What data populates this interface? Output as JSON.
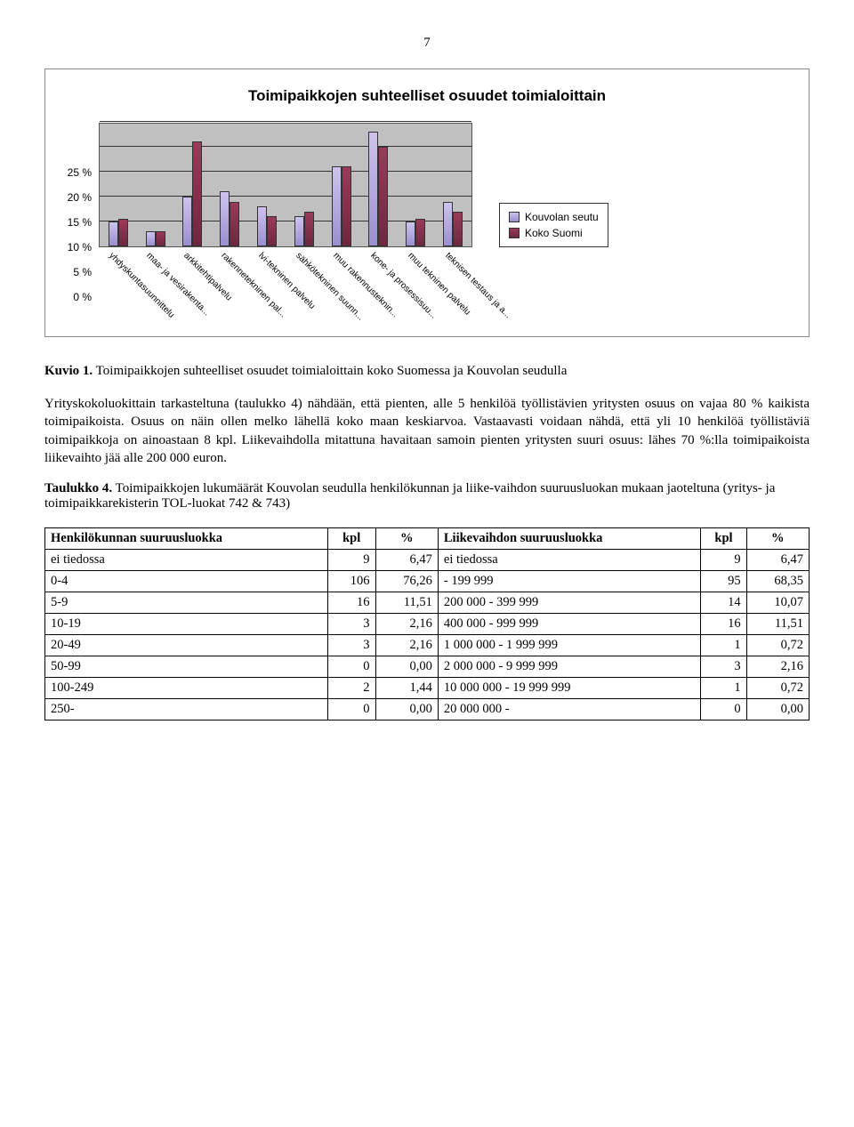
{
  "page_number": "7",
  "chart": {
    "title": "Toimipaikkojen suhteelliset osuudet toimialoittain",
    "type": "bar",
    "y_ticks": [
      "0 %",
      "5 %",
      "10 %",
      "15 %",
      "20 %",
      "25 %"
    ],
    "y_max": 25,
    "categories": [
      "yhdyskuntasuunnittelu",
      "maa- ja vesirakenta...",
      "arkkitehtipalvelu",
      "rakennetekninen pal...",
      "lvi-tekninen palvelu",
      "sähkötekninen suunn...",
      "muu rakennusteknin...",
      "kone- ja prosessisuu...",
      "muu tekninen palvelu",
      "teknisen testaus ja a..."
    ],
    "series": [
      {
        "name": "Kouvolan seutu",
        "class": "a",
        "values": [
          5,
          3,
          10,
          11,
          8,
          6,
          16,
          23,
          5,
          9
        ]
      },
      {
        "name": "Koko Suomi",
        "class": "b",
        "values": [
          5.5,
          3,
          21,
          9,
          6,
          7,
          16,
          20,
          5.5,
          7
        ]
      }
    ],
    "legend": [
      "Kouvolan seutu",
      "Koko Suomi"
    ],
    "plot_bg": "#c0c0c0"
  },
  "caption1_bold": "Kuvio 1.",
  "caption1_rest": " Toimipaikkojen suhteelliset osuudet toimialoittain koko Suomessa ja Kouvolan seudulla",
  "body1": "Yrityskokoluokittain tarkasteltuna (taulukko 4) nähdään, että pienten, alle 5 henkilöä työllistävien yritysten osuus on vajaa 80 % kaikista toimipaikoista. Osuus on näin ollen melko lähellä koko maan keskiarvoa. Vastaavasti voidaan nähdä, että yli 10 henkilöä työllistäviä toimipaikkoja on ainoastaan 8 kpl. Liikevaihdolla mitattuna havaitaan samoin pienten yritysten suuri osuus: lähes 70 %:lla toimipaikoista liikevaihto jää alle 200 000 euron.",
  "caption2_bold": "Taulukko 4.",
  "caption2_rest": " Toimipaikkojen lukumäärät Kouvolan seudulla henkilökunnan ja liike-vaihdon suuruusluokan mukaan jaoteltuna (yritys- ja toimipaikkarekisterin TOL-luokat 742 & 743)",
  "table": {
    "headers": [
      "Henkilökunnan suuruusluokka",
      "kpl",
      "%",
      "Liikevaihdon suuruusluokka",
      "kpl",
      "%"
    ],
    "rows": [
      [
        "ei tiedossa",
        "9",
        "6,47",
        "ei tiedossa",
        "9",
        "6,47"
      ],
      [
        "0-4",
        "106",
        "76,26",
        "- 199 999",
        "95",
        "68,35"
      ],
      [
        "5-9",
        "16",
        "11,51",
        "200 000 - 399 999",
        "14",
        "10,07"
      ],
      [
        "10-19",
        "3",
        "2,16",
        "400 000 - 999 999",
        "16",
        "11,51"
      ],
      [
        "20-49",
        "3",
        "2,16",
        "1 000 000 - 1 999 999",
        "1",
        "0,72"
      ],
      [
        "50-99",
        "0",
        "0,00",
        "2 000 000 - 9 999 999",
        "3",
        "2,16"
      ],
      [
        "100-249",
        "2",
        "1,44",
        "10 000 000 - 19 999 999",
        "1",
        "0,72"
      ],
      [
        "250-",
        "0",
        "0,00",
        "20 000 000 -",
        "0",
        "0,00"
      ]
    ]
  }
}
